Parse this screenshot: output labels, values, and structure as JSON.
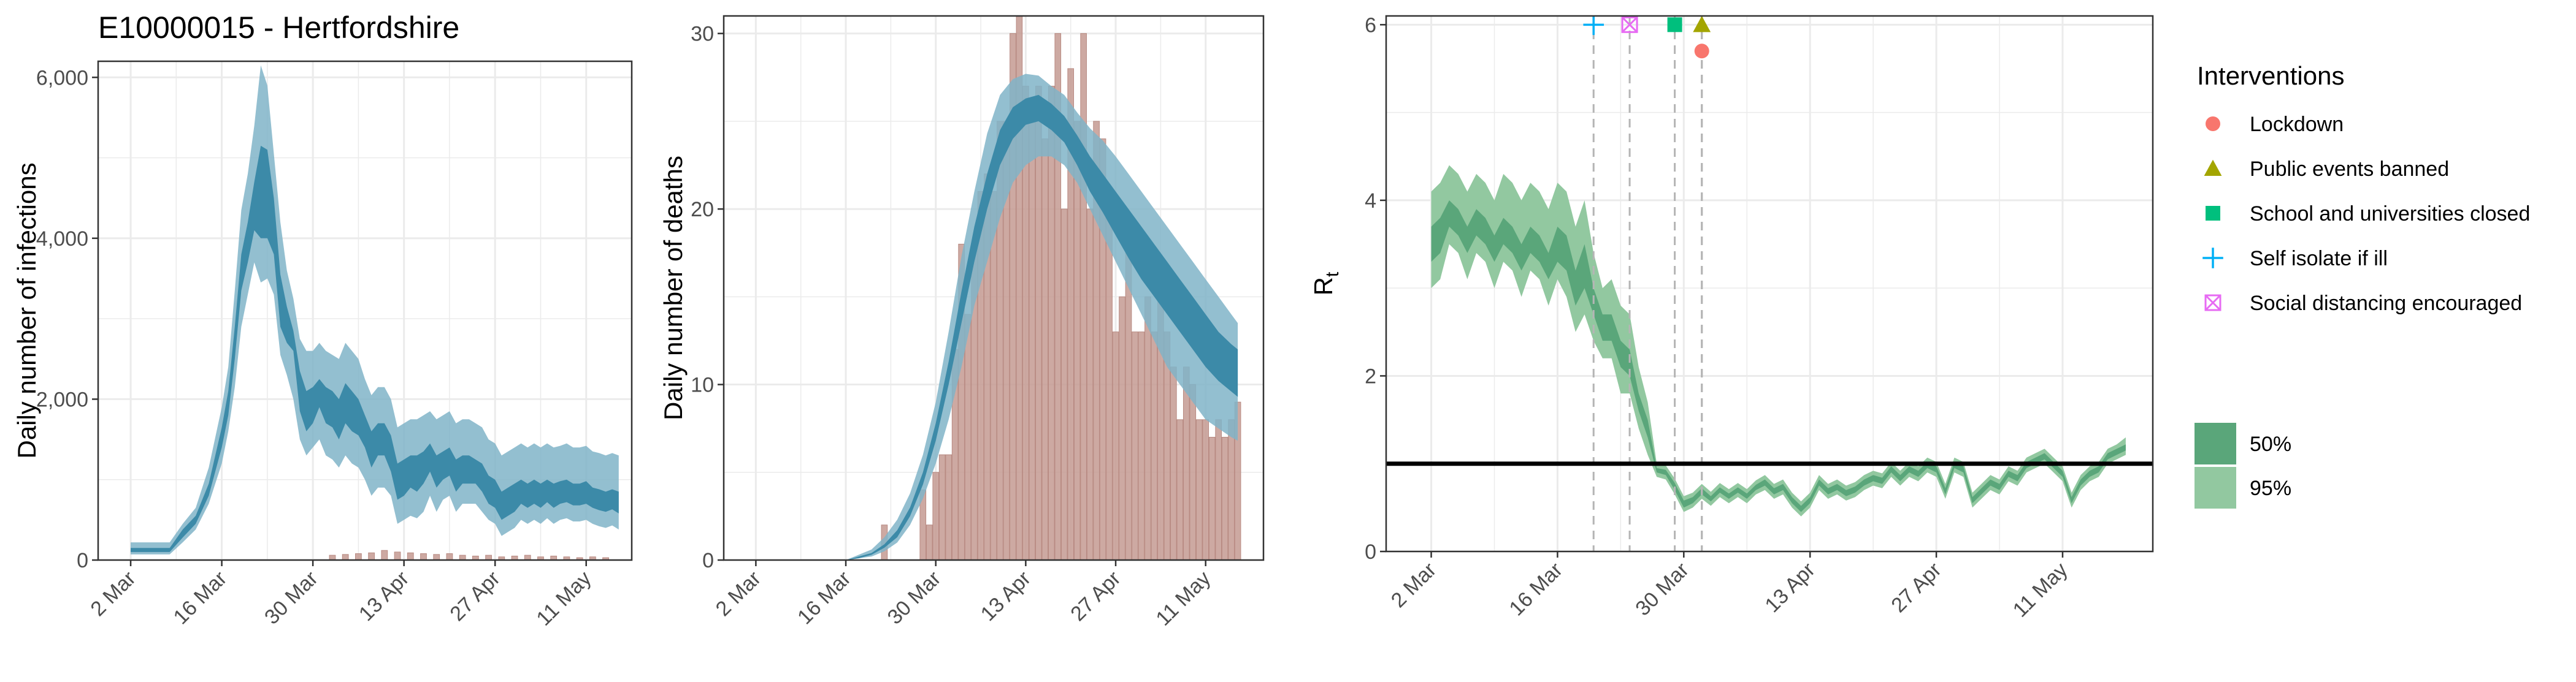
{
  "title": "E10000015 - Hertfordshire",
  "colors": {
    "infection_band_95": "#80b4c8",
    "infection_band_50": "#3c8aa8",
    "death_bar": "#c49a92",
    "rt_band_95": "#92c8a0",
    "rt_band_50": "#5aa67a",
    "grid": "#ebebeb",
    "lockdown": "#f8766d",
    "public_events": "#a3a500",
    "schools": "#00bf7d",
    "self_isolate": "#00b0f6",
    "social_distancing": "#e76bf3"
  },
  "chart_data": [
    {
      "type": "area",
      "name": "infections",
      "xlabel": "",
      "ylabel": "Daily number of infections",
      "x_ticks": [
        "2 Mar",
        "16 Mar",
        "30 Mar",
        "13 Apr",
        "27 Apr",
        "11 May"
      ],
      "y_ticks": [
        "0",
        "2,000",
        "4,000",
        "6,000"
      ],
      "ylim": [
        0,
        6200
      ],
      "grid": true,
      "x_days": [
        0,
        3,
        6,
        8,
        10,
        12,
        14,
        15,
        16,
        17,
        18,
        19,
        20,
        21,
        22,
        23,
        24,
        25,
        26,
        27,
        28,
        29,
        30,
        31,
        32,
        33,
        34,
        35,
        36,
        37,
        38,
        39,
        40,
        41,
        42,
        43,
        44,
        45,
        46,
        47,
        48,
        49,
        50,
        51,
        52,
        53,
        54,
        55,
        56,
        57,
        58,
        59,
        60,
        61,
        62,
        63,
        64,
        65,
        66,
        67,
        68,
        69,
        70,
        71,
        72,
        73,
        74,
        75
      ],
      "x_dates": [
        "2020-02-26",
        "2020-02-29",
        "2020-03-03",
        "2020-03-05",
        "2020-03-07",
        "2020-03-09",
        "2020-03-11",
        "2020-03-12",
        "2020-03-13",
        "2020-03-14",
        "2020-03-15",
        "2020-03-16",
        "2020-03-17",
        "2020-03-18",
        "2020-03-19",
        "2020-03-20",
        "2020-03-21",
        "2020-03-22",
        "2020-03-23",
        "2020-03-24",
        "2020-03-25",
        "2020-03-26",
        "2020-03-27",
        "2020-03-28",
        "2020-03-29",
        "2020-03-30",
        "2020-03-31",
        "2020-04-01",
        "2020-04-02",
        "2020-04-03",
        "2020-04-04",
        "2020-04-05",
        "2020-04-06",
        "2020-04-07",
        "2020-04-08",
        "2020-04-09",
        "2020-04-10",
        "2020-04-11",
        "2020-04-12",
        "2020-04-13",
        "2020-04-14",
        "2020-04-15",
        "2020-04-16",
        "2020-04-17",
        "2020-04-18",
        "2020-04-19",
        "2020-04-20",
        "2020-04-21",
        "2020-04-22",
        "2020-04-23",
        "2020-04-24",
        "2020-04-25",
        "2020-04-26",
        "2020-04-27",
        "2020-04-28",
        "2020-04-29",
        "2020-04-30",
        "2020-05-01",
        "2020-05-02",
        "2020-05-03",
        "2020-05-04",
        "2020-05-05",
        "2020-05-06",
        "2020-05-07",
        "2020-05-08",
        "2020-05-09",
        "2020-05-10",
        "2020-05-11"
      ],
      "ci95_low": [
        70,
        70,
        70,
        220,
        380,
        700,
        1200,
        1600,
        2150,
        2900,
        3300,
        3700,
        3450,
        3500,
        3300,
        2550,
        2300,
        2000,
        1500,
        1300,
        1400,
        1500,
        1300,
        1250,
        1150,
        1300,
        1200,
        1150,
        1000,
        800,
        900,
        900,
        800,
        450,
        500,
        550,
        520,
        600,
        800,
        600,
        750,
        800,
        600,
        700,
        700,
        700,
        600,
        500,
        450,
        300,
        350,
        400,
        500,
        450,
        500,
        450,
        520,
        450,
        500,
        520,
        480,
        480,
        500,
        450,
        420,
        400,
        430,
        380
      ],
      "ci50_low": [
        100,
        100,
        100,
        280,
        450,
        800,
        1400,
        1800,
        2500,
        3350,
        3700,
        4100,
        4000,
        4000,
        3800,
        2900,
        2700,
        2600,
        1850,
        1600,
        1700,
        1900,
        1700,
        1650,
        1500,
        1700,
        1600,
        1550,
        1400,
        1150,
        1300,
        1300,
        1100,
        750,
        800,
        900,
        850,
        950,
        1100,
        900,
        1000,
        1050,
        850,
        950,
        950,
        950,
        850,
        700,
        650,
        500,
        550,
        600,
        700,
        650,
        700,
        650,
        720,
        650,
        700,
        720,
        680,
        680,
        700,
        650,
        620,
        600,
        630,
        580
      ],
      "ci50_high": [
        150,
        150,
        150,
        380,
        550,
        950,
        1650,
        2100,
        2900,
        3800,
        4200,
        4700,
        5150,
        5100,
        4500,
        3550,
        3150,
        2850,
        2350,
        2100,
        2150,
        2250,
        2150,
        2100,
        2000,
        2200,
        2100,
        2000,
        1800,
        1600,
        1700,
        1700,
        1550,
        1200,
        1250,
        1300,
        1300,
        1350,
        1450,
        1300,
        1350,
        1400,
        1250,
        1300,
        1300,
        1250,
        1200,
        1050,
        1000,
        850,
        900,
        950,
        1000,
        950,
        1000,
        950,
        1000,
        950,
        980,
        1000,
        950,
        950,
        980,
        900,
        880,
        850,
        880,
        850
      ],
      "ci95_high": [
        220,
        220,
        220,
        450,
        650,
        1150,
        1900,
        2400,
        3350,
        4350,
        4800,
        5400,
        6150,
        5900,
        5050,
        4200,
        3600,
        3250,
        2750,
        2600,
        2600,
        2700,
        2600,
        2550,
        2500,
        2700,
        2600,
        2500,
        2250,
        2050,
        2150,
        2150,
        2000,
        1650,
        1700,
        1750,
        1750,
        1800,
        1850,
        1750,
        1800,
        1850,
        1700,
        1750,
        1750,
        1700,
        1650,
        1500,
        1450,
        1300,
        1350,
        1400,
        1450,
        1400,
        1450,
        1400,
        1450,
        1400,
        1420,
        1450,
        1400,
        1400,
        1420,
        1350,
        1330,
        1300,
        1330,
        1300
      ],
      "bars_x_days": [
        31,
        33,
        35,
        37,
        39,
        41,
        43,
        45,
        47,
        49,
        51,
        53,
        55,
        57,
        59,
        61,
        63,
        65,
        67,
        69,
        71,
        73
      ],
      "bars_values": [
        60,
        70,
        80,
        90,
        120,
        100,
        90,
        80,
        70,
        80,
        60,
        50,
        60,
        40,
        50,
        60,
        40,
        50,
        40,
        30,
        40,
        30
      ]
    },
    {
      "type": "bar",
      "name": "deaths",
      "xlabel": "",
      "ylabel": "Daily number of deaths",
      "x_ticks": [
        "2 Mar",
        "16 Mar",
        "30 Mar",
        "13 Apr",
        "27 Apr",
        "11 May"
      ],
      "y_ticks": [
        "0",
        "10",
        "20",
        "30"
      ],
      "ylim": [
        0,
        31
      ],
      "grid": true,
      "x_days": [
        0,
        4,
        8,
        10,
        12,
        14,
        16,
        18,
        20,
        22,
        24,
        26,
        28,
        30,
        32,
        34,
        36,
        38,
        40,
        42,
        44,
        46,
        48,
        50,
        52,
        54,
        56,
        58,
        60,
        62,
        64,
        66,
        68,
        70,
        72,
        74,
        75
      ],
      "ci95_low": [
        0,
        0,
        0,
        0,
        0,
        0,
        0.1,
        0.2,
        0.5,
        1.0,
        2.0,
        3.5,
        5.5,
        8.0,
        11.0,
        14.5,
        17.0,
        19.5,
        21.5,
        22.5,
        23.0,
        23.0,
        22.5,
        21.5,
        20.0,
        18.5,
        17.0,
        15.5,
        14.0,
        12.5,
        11.0,
        10.0,
        9.0,
        8.0,
        7.5,
        7.0,
        6.8
      ],
      "ci50_low": [
        0,
        0,
        0,
        0,
        0,
        0,
        0.1,
        0.3,
        0.7,
        1.3,
        2.5,
        4.3,
        6.8,
        10.0,
        13.5,
        17.0,
        20.0,
        22.5,
        24.0,
        24.8,
        25.0,
        24.5,
        23.8,
        22.5,
        21.0,
        19.8,
        18.5,
        17.2,
        16.0,
        15.0,
        14.0,
        13.0,
        12.0,
        11.0,
        10.2,
        9.6,
        9.3
      ],
      "ci50_high": [
        0,
        0,
        0,
        0,
        0,
        0,
        0.2,
        0.4,
        0.9,
        1.7,
        3.0,
        5.0,
        7.8,
        11.3,
        15.3,
        19.0,
        22.0,
        24.5,
        25.8,
        26.3,
        26.5,
        26.0,
        25.3,
        24.2,
        23.0,
        22.0,
        21.0,
        20.0,
        19.0,
        18.0,
        17.0,
        16.0,
        15.0,
        14.0,
        13.0,
        12.3,
        12.0
      ],
      "ci95_high": [
        0,
        0,
        0,
        0,
        0,
        0,
        0.3,
        0.6,
        1.3,
        2.3,
        3.8,
        6.0,
        9.0,
        13.0,
        17.3,
        21.0,
        24.3,
        26.5,
        27.4,
        27.7,
        27.6,
        27.0,
        26.5,
        25.5,
        24.6,
        23.9,
        23.0,
        22.0,
        21.0,
        20.0,
        19.0,
        18.0,
        17.0,
        16.0,
        15.0,
        14.0,
        13.5
      ],
      "bars_x_days": [
        20,
        26,
        27,
        28,
        29,
        30,
        31,
        32,
        33,
        34,
        35,
        36,
        37,
        38,
        39,
        40,
        41,
        42,
        43,
        44,
        45,
        46,
        47,
        48,
        49,
        50,
        51,
        52,
        53,
        54,
        55,
        56,
        57,
        58,
        59,
        60,
        61,
        62,
        63,
        64,
        65,
        66,
        67,
        68,
        69,
        70,
        71,
        72,
        73,
        74,
        75
      ],
      "bars_values": [
        2,
        4,
        2,
        5,
        6,
        6,
        12,
        18,
        14,
        18,
        21,
        22,
        21,
        25,
        25,
        30,
        32,
        27,
        26,
        27,
        24,
        27,
        30,
        20,
        28,
        25,
        30,
        20,
        25,
        24,
        20,
        13,
        15,
        18,
        13,
        13,
        15,
        13,
        16,
        13,
        11,
        8,
        11,
        10,
        8,
        8,
        7,
        8,
        7,
        8,
        9
      ]
    },
    {
      "type": "line",
      "name": "rt",
      "xlabel": "",
      "ylabel": "R",
      "ylabel_sub": "t",
      "x_ticks": [
        "2 Mar",
        "16 Mar",
        "30 Mar",
        "13 Apr",
        "27 Apr",
        "11 May"
      ],
      "y_ticks": [
        "0",
        "2",
        "4",
        "6"
      ],
      "ylim": [
        0,
        6.1
      ],
      "grid": true,
      "reference_line": 1,
      "x_days": [
        0,
        1,
        2,
        3,
        4,
        5,
        6,
        7,
        8,
        9,
        10,
        11,
        12,
        13,
        14,
        15,
        16,
        17,
        18,
        19,
        20,
        21,
        22,
        23,
        24,
        25,
        26,
        27,
        28,
        29,
        30,
        31,
        32,
        33,
        34,
        35,
        36,
        37,
        38,
        39,
        40,
        41,
        42,
        43,
        44,
        45,
        46,
        47,
        48,
        49,
        50,
        51,
        52,
        53,
        54,
        55,
        56,
        57,
        58,
        59,
        60,
        61,
        62,
        63,
        64,
        65,
        66,
        67,
        68,
        69,
        70,
        71,
        72,
        73,
        74,
        75,
        76,
        77
      ],
      "ci95_low": [
        3.0,
        3.1,
        3.5,
        3.4,
        3.1,
        3.4,
        3.3,
        3.0,
        3.3,
        3.2,
        2.9,
        3.2,
        3.1,
        2.8,
        3.1,
        2.9,
        2.5,
        2.7,
        2.4,
        2.2,
        2.2,
        1.8,
        1.8,
        1.4,
        1.1,
        0.85,
        0.82,
        0.65,
        0.45,
        0.5,
        0.6,
        0.52,
        0.62,
        0.55,
        0.62,
        0.55,
        0.65,
        0.7,
        0.6,
        0.65,
        0.5,
        0.4,
        0.5,
        0.7,
        0.6,
        0.65,
        0.58,
        0.62,
        0.7,
        0.75,
        0.72,
        0.85,
        0.75,
        0.85,
        0.8,
        0.9,
        0.85,
        0.6,
        0.9,
        0.85,
        0.5,
        0.6,
        0.7,
        0.65,
        0.8,
        0.75,
        0.9,
        0.95,
        1.0,
        0.9,
        0.8,
        0.5,
        0.7,
        0.8,
        0.85,
        1.0,
        1.05,
        1.1
      ],
      "ci50_low": [
        3.3,
        3.4,
        3.7,
        3.6,
        3.4,
        3.6,
        3.5,
        3.3,
        3.5,
        3.4,
        3.2,
        3.4,
        3.3,
        3.1,
        3.3,
        3.2,
        2.8,
        3.0,
        2.7,
        2.4,
        2.4,
        2.1,
        2.0,
        1.6,
        1.3,
        0.9,
        0.87,
        0.7,
        0.5,
        0.55,
        0.65,
        0.57,
        0.67,
        0.6,
        0.67,
        0.6,
        0.7,
        0.75,
        0.65,
        0.7,
        0.55,
        0.45,
        0.55,
        0.75,
        0.65,
        0.7,
        0.63,
        0.67,
        0.75,
        0.8,
        0.77,
        0.9,
        0.8,
        0.9,
        0.85,
        0.95,
        0.9,
        0.65,
        0.95,
        0.9,
        0.55,
        0.65,
        0.75,
        0.7,
        0.85,
        0.8,
        0.95,
        1.0,
        1.05,
        0.95,
        0.85,
        0.55,
        0.75,
        0.85,
        0.9,
        1.05,
        1.1,
        1.15
      ],
      "ci50_high": [
        3.7,
        3.8,
        4.0,
        3.9,
        3.7,
        3.9,
        3.8,
        3.6,
        3.8,
        3.7,
        3.5,
        3.7,
        3.6,
        3.4,
        3.7,
        3.6,
        3.2,
        3.5,
        3.0,
        2.7,
        2.7,
        2.4,
        2.3,
        1.8,
        1.5,
        0.95,
        0.93,
        0.78,
        0.58,
        0.62,
        0.72,
        0.63,
        0.73,
        0.66,
        0.73,
        0.66,
        0.76,
        0.82,
        0.72,
        0.77,
        0.62,
        0.52,
        0.62,
        0.82,
        0.72,
        0.77,
        0.7,
        0.74,
        0.82,
        0.87,
        0.84,
        0.97,
        0.87,
        0.97,
        0.92,
        1.02,
        0.97,
        0.72,
        1.02,
        0.97,
        0.62,
        0.72,
        0.82,
        0.77,
        0.92,
        0.87,
        1.02,
        1.07,
        1.12,
        1.02,
        0.92,
        0.62,
        0.82,
        0.92,
        0.97,
        1.12,
        1.17,
        1.22
      ],
      "ci95_high": [
        4.1,
        4.2,
        4.4,
        4.3,
        4.1,
        4.3,
        4.2,
        4.0,
        4.3,
        4.2,
        4.0,
        4.2,
        4.1,
        3.9,
        4.2,
        4.1,
        3.7,
        4.0,
        3.4,
        3.0,
        3.1,
        2.8,
        2.7,
        2.1,
        1.7,
        1.0,
        0.98,
        0.83,
        0.63,
        0.67,
        0.77,
        0.68,
        0.78,
        0.71,
        0.78,
        0.71,
        0.81,
        0.87,
        0.77,
        0.82,
        0.67,
        0.57,
        0.67,
        0.87,
        0.77,
        0.82,
        0.75,
        0.79,
        0.87,
        0.92,
        0.89,
        1.02,
        0.92,
        1.02,
        0.97,
        1.07,
        1.02,
        0.77,
        1.07,
        1.02,
        0.67,
        0.77,
        0.87,
        0.82,
        0.97,
        0.92,
        1.07,
        1.12,
        1.17,
        1.07,
        0.97,
        0.67,
        0.87,
        0.97,
        1.02,
        1.17,
        1.22,
        1.3
      ],
      "interventions": [
        {
          "label": "Self isolate if ill",
          "day": 18,
          "shape": "plus",
          "color_key": "self_isolate",
          "y": 6.0
        },
        {
          "label": "Social distancing encouraged",
          "day": 22,
          "shape": "boxx",
          "color_key": "social_distancing",
          "y": 6.0
        },
        {
          "label": "School and universities closed",
          "day": 27,
          "shape": "square",
          "color_key": "schools",
          "y": 6.0
        },
        {
          "label": "Public events banned",
          "day": 30,
          "shape": "triangle",
          "color_key": "public_events",
          "y": 6.0
        },
        {
          "label": "Lockdown",
          "day": 30,
          "shape": "circle",
          "color_key": "lockdown",
          "y": 5.7
        }
      ]
    }
  ],
  "legend": {
    "title": "Interventions",
    "items": [
      {
        "label": "Lockdown",
        "shape": "circle",
        "color_key": "lockdown"
      },
      {
        "label": "Public events banned",
        "shape": "triangle",
        "color_key": "public_events"
      },
      {
        "label": "School and universities closed",
        "shape": "square",
        "color_key": "schools"
      },
      {
        "label": "Self isolate if ill",
        "shape": "plus",
        "color_key": "self_isolate"
      },
      {
        "label": "Social distancing encouraged",
        "shape": "boxx",
        "color_key": "social_distancing"
      }
    ],
    "ci_items": [
      {
        "label": "50%",
        "color_key": "rt_band_50"
      },
      {
        "label": "95%",
        "color_key": "rt_band_95"
      }
    ]
  }
}
